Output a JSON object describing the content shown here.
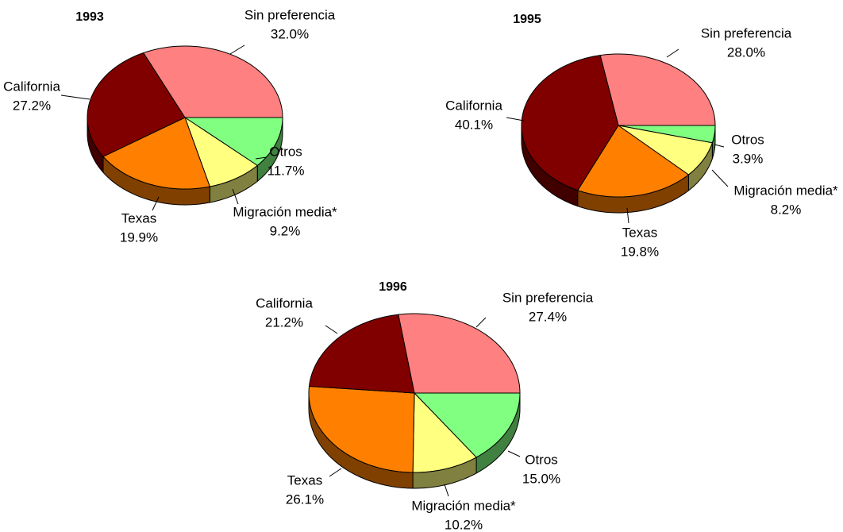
{
  "chart_data": [
    {
      "type": "pie",
      "title": "1993",
      "categories": [
        "Sin preferencia",
        "Otros",
        "Migración media*",
        "Texas",
        "California"
      ],
      "values": [
        32.0,
        11.7,
        9.2,
        19.9,
        27.2
      ],
      "value_labels": [
        "32.0%",
        "11.7%",
        "9.2%",
        "19.9%",
        "27.2%"
      ],
      "colors": [
        "#ff8080",
        "#80ff80",
        "#ffff80",
        "#ff8000",
        "#800000"
      ]
    },
    {
      "type": "pie",
      "title": "1995",
      "categories": [
        "Sin preferencia",
        "Otros",
        "Migración media*",
        "Texas",
        "California"
      ],
      "values": [
        28.0,
        3.9,
        8.2,
        19.8,
        40.1
      ],
      "value_labels": [
        "28.0%",
        "3.9%",
        "8.2%",
        "19.8%",
        "40.1%"
      ],
      "colors": [
        "#ff8080",
        "#80ff80",
        "#ffff80",
        "#ff8000",
        "#800000"
      ]
    },
    {
      "type": "pie",
      "title": "1996",
      "categories": [
        "Sin preferencia",
        "Otros",
        "Migración media*",
        "Texas",
        "California"
      ],
      "values": [
        27.4,
        15.0,
        10.2,
        26.1,
        21.2
      ],
      "value_labels": [
        "27.4%",
        "15.0%",
        "10.2%",
        "26.1%",
        "21.2%"
      ],
      "colors": [
        "#ff8080",
        "#80ff80",
        "#ffff80",
        "#ff8000",
        "#800000"
      ]
    }
  ]
}
